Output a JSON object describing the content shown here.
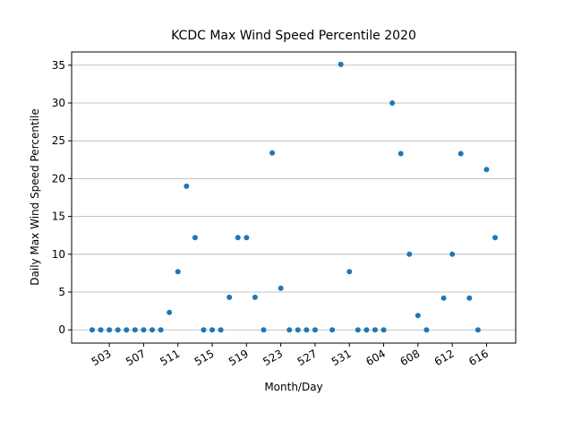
{
  "chart_data": {
    "type": "scatter",
    "title": "KCDC Max Wind Speed Percentile 2020",
    "x_label": "Month/Day",
    "y_label": "Daily Max Wind Speed Percentile",
    "categories": [
      null,
      null,
      "503",
      null,
      null,
      null,
      "507",
      null,
      null,
      null,
      "511",
      null,
      null,
      null,
      "515",
      null,
      null,
      null,
      "519",
      null,
      null,
      null,
      "523",
      null,
      null,
      null,
      "527",
      null,
      null,
      null,
      "531",
      null,
      null,
      null,
      "604",
      null,
      null,
      null,
      "608",
      null,
      null,
      null,
      "612",
      null,
      null,
      null,
      "616",
      null
    ],
    "values": [
      0,
      0,
      0,
      0,
      0,
      0,
      0,
      0,
      0,
      2.3,
      7.7,
      19,
      12.2,
      0,
      0,
      0,
      4.3,
      12.2,
      12.2,
      4.3,
      0,
      23.4,
      5.5,
      0,
      0,
      0,
      0,
      null,
      0,
      35.1,
      7.7,
      0,
      0,
      0,
      0,
      30,
      23.3,
      10,
      1.9,
      0,
      null,
      4.2,
      10,
      23.3,
      4.2,
      0,
      21.2,
      12.2
    ],
    "color": "#1f77b4",
    "ylim": [
      -1.75,
      36.75
    ],
    "yticks": [
      0,
      5,
      10,
      15,
      20,
      25,
      30,
      35
    ],
    "grid": "y"
  }
}
